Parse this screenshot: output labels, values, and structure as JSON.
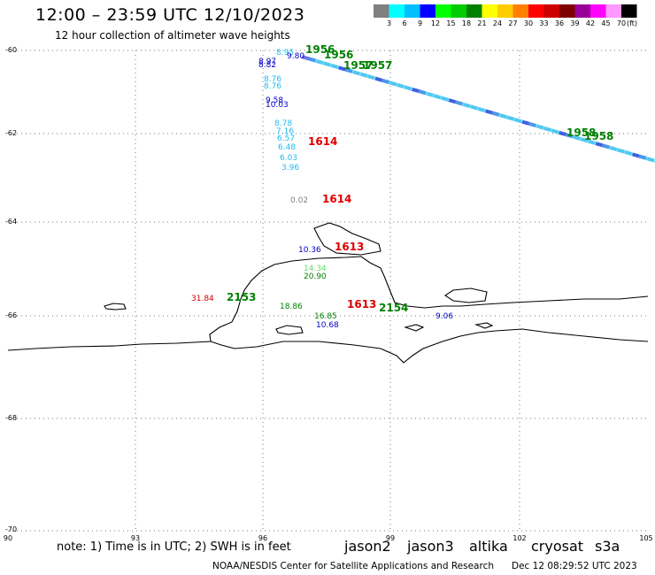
{
  "header": {
    "title": "12:00 – 23:59 UTC 12/10/2023",
    "subtitle": "12 hour collection of altimeter wave heights"
  },
  "color_scale": {
    "colors": [
      "#808080",
      "#00ffff",
      "#00bfff",
      "#0000ff",
      "#00ff00",
      "#00cc00",
      "#008000",
      "#ffff00",
      "#ffcc00",
      "#ff8000",
      "#ff0000",
      "#cc0000",
      "#800000",
      "#990099",
      "#ff00ff",
      "#ff99ff",
      "#000000"
    ],
    "labels": [
      "3",
      "6",
      "9",
      "12",
      "15",
      "18",
      "21",
      "24",
      "27",
      "30",
      "33",
      "36",
      "39",
      "42",
      "45",
      "70",
      "(ft)"
    ]
  },
  "axes": {
    "lat_ticks": [
      "-60",
      "-62",
      "-64",
      "-66",
      "-68",
      "-70"
    ],
    "lon_ticks": [
      "90",
      "93",
      "96",
      "99",
      "102",
      "105"
    ]
  },
  "annotations": [
    {
      "text": "8.95",
      "color": "#22bbee"
    },
    {
      "text": "9.80",
      "color": "#0000cc"
    },
    {
      "text": "1956",
      "color": "#008000"
    },
    {
      "text": "1956",
      "color": "#008000"
    },
    {
      "text": "8.97",
      "color": "#0000cc"
    },
    {
      "text": "8.82",
      "color": "#0000cc"
    },
    {
      "text": "1957",
      "color": "#008000"
    },
    {
      "text": "1957",
      "color": "#008000"
    },
    {
      "text": "8.76",
      "color": "#22bbee"
    },
    {
      "text": "8.76",
      "color": "#22bbee"
    },
    {
      "text": "9.58",
      "color": "#0000cc"
    },
    {
      "text": "10.03",
      "color": "#0000cc"
    },
    {
      "text": "8.78",
      "color": "#22bbee"
    },
    {
      "text": "7.16",
      "color": "#22bbee"
    },
    {
      "text": "6.57",
      "color": "#22bbee"
    },
    {
      "text": "6.48",
      "color": "#22bbee"
    },
    {
      "text": "6.03",
      "color": "#22bbee"
    },
    {
      "text": "3.96",
      "color": "#22bbee"
    },
    {
      "text": "1614",
      "color": "#dd0000"
    },
    {
      "text": "0.02",
      "color": "#808080"
    },
    {
      "text": "1614",
      "color": "#dd0000"
    },
    {
      "text": "10.36",
      "color": "#0000cc"
    },
    {
      "text": "1613",
      "color": "#dd0000"
    },
    {
      "text": "14.34",
      "color": "#66dd66"
    },
    {
      "text": "20.90",
      "color": "#008000"
    },
    {
      "text": "31.84",
      "color": "#cc0000"
    },
    {
      "text": "2153",
      "color": "#008000"
    },
    {
      "text": "18.86",
      "color": "#008000"
    },
    {
      "text": "1613",
      "color": "#dd0000"
    },
    {
      "text": "2154",
      "color": "#008000"
    },
    {
      "text": "16.85",
      "color": "#008000"
    },
    {
      "text": "10.68",
      "color": "#0000cc"
    },
    {
      "text": "9.06",
      "color": "#0000cc"
    },
    {
      "text": "1958",
      "color": "#008000"
    },
    {
      "text": "1958",
      "color": "#008000"
    }
  ],
  "legend": {
    "note": "note: 1) Time is in UTC; 2) SWH is in feet",
    "satellites": [
      {
        "name": "jason2",
        "color": "#0000cc"
      },
      {
        "name": "jason3",
        "color": "#008000"
      },
      {
        "name": "altika",
        "color": "#ff8800"
      },
      {
        "name": "cryosat",
        "color": "#dd0000"
      },
      {
        "name": "s3a",
        "color": "#880000"
      }
    ]
  },
  "footer": {
    "credit": "NOAA/NESDIS Center for Satellite Applications and Research",
    "timestamp": "Dec 12 08:29:52 UTC 2023"
  }
}
